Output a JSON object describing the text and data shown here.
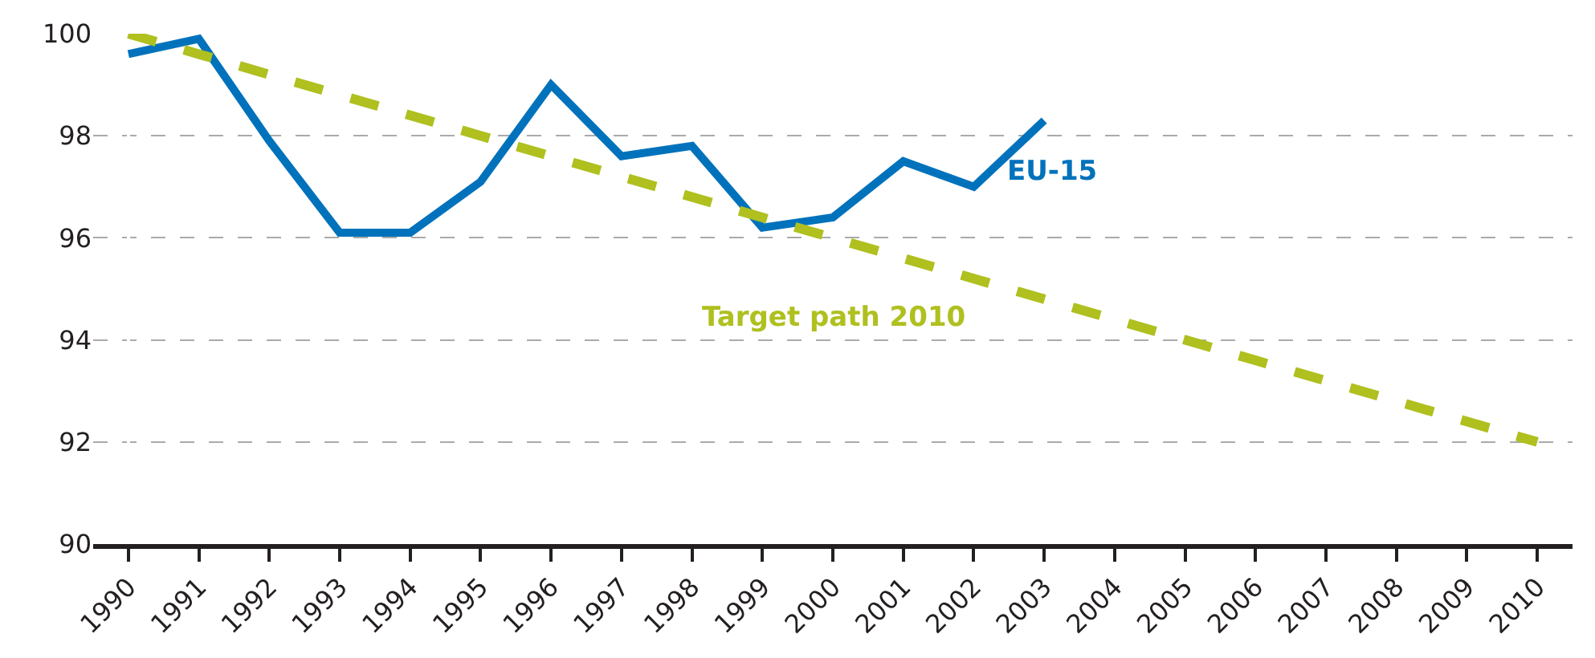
{
  "chart_data": {
    "type": "line",
    "categories": [
      "1990",
      "1991",
      "1992",
      "1993",
      "1994",
      "1995",
      "1996",
      "1997",
      "1998",
      "1999",
      "2000",
      "2001",
      "2002",
      "2003",
      "2004",
      "2005",
      "2006",
      "2007",
      "2008",
      "2009",
      "2010"
    ],
    "series": [
      {
        "name": "EU-15",
        "color": "#0072bc",
        "line_style": "solid",
        "values": [
          99.6,
          99.9,
          97.9,
          96.1,
          96.1,
          97.1,
          99.0,
          97.6,
          97.8,
          96.2,
          96.4,
          97.5,
          97.0,
          98.3,
          null,
          null,
          null,
          null,
          null,
          null,
          null
        ]
      },
      {
        "name": "Target path 2010",
        "color": "#afc01f",
        "line_style": "dashed",
        "values": [
          100,
          99.6,
          99.2,
          98.8,
          98.4,
          98.0,
          97.6,
          97.2,
          96.8,
          96.4,
          96.0,
          95.6,
          95.2,
          94.8,
          94.4,
          94.0,
          93.6,
          93.2,
          92.8,
          92.4,
          92.0
        ]
      }
    ],
    "ylim": [
      90,
      100
    ],
    "yticks": [
      90,
      92,
      94,
      96,
      98,
      100
    ],
    "grid": "y",
    "legend": false,
    "marker": "none"
  }
}
